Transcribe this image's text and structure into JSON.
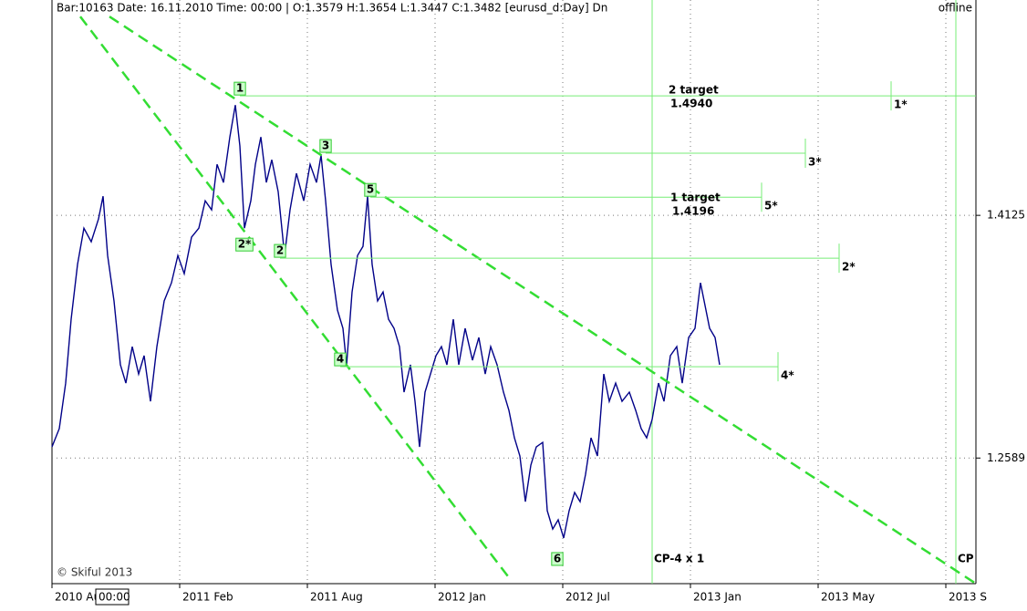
{
  "chart_data": {
    "type": "line",
    "header": "Bar:10163  Date:  16.11.2010  Time:  00:00  |  O:1.3579  H:1.3654  L:1.3447  C:1.3482   [eurusd_d:Day]  Dn",
    "status": "offline",
    "copyright": "© Skiful 2013",
    "time_box": "00:00",
    "color": "#000088",
    "grid": true,
    "xlim": [
      0,
      1013
    ],
    "ylim": [
      1.1794,
      1.5488
    ],
    "xticks": [
      {
        "value": 0,
        "label": "2010 Aug"
      },
      {
        "value": 140,
        "label": "2011 Feb"
      },
      {
        "value": 280,
        "label": "2011 Aug"
      },
      {
        "value": 420,
        "label": "2012 Jan"
      },
      {
        "value": 560,
        "label": "2012 Jul"
      },
      {
        "value": 700,
        "label": "2013 Jan"
      },
      {
        "value": 840,
        "label": "2013 May"
      },
      {
        "value": 980,
        "label": "2013 S"
      }
    ],
    "yticks": [
      1.4125,
      1.2589
    ],
    "x": [
      0,
      8,
      15,
      21,
      28,
      35,
      43,
      51,
      56,
      61,
      68,
      75,
      81,
      88,
      95,
      101,
      108,
      115,
      123,
      131,
      138,
      145,
      153,
      161,
      168,
      175,
      181,
      188,
      195,
      201,
      206,
      211,
      218,
      223,
      229,
      235,
      241,
      248,
      255,
      261,
      268,
      276,
      283,
      290,
      295,
      300,
      306,
      313,
      319,
      323,
      329,
      335,
      341,
      346,
      351,
      357,
      363,
      369,
      375,
      381,
      386,
      393,
      398,
      403,
      409,
      415,
      421,
      427,
      433,
      440,
      446,
      453,
      461,
      468,
      475,
      481,
      488,
      495,
      501,
      507,
      513,
      519,
      525,
      531,
      538,
      543,
      549,
      555,
      561,
      567,
      573,
      579,
      585,
      591,
      598,
      605,
      611,
      618,
      625,
      633,
      640,
      646,
      652,
      658,
      665,
      671,
      678,
      685,
      691,
      698,
      705,
      711,
      715,
      721,
      727,
      732
    ],
    "values": [
      1.266,
      1.2775,
      1.3063,
      1.3467,
      1.3814,
      1.4044,
      1.3958,
      1.4102,
      1.4246,
      1.3871,
      1.3583,
      1.3179,
      1.3063,
      1.3294,
      1.3121,
      1.3237,
      1.2948,
      1.3294,
      1.3583,
      1.3698,
      1.3871,
      1.3756,
      1.3987,
      1.4044,
      1.4217,
      1.416,
      1.4448,
      1.4333,
      1.4621,
      1.4823,
      1.4564,
      1.4044,
      1.4217,
      1.4448,
      1.4621,
      1.4333,
      1.4477,
      1.4275,
      1.3871,
      1.416,
      1.4391,
      1.4217,
      1.4448,
      1.4333,
      1.4506,
      1.4217,
      1.3814,
      1.3525,
      1.341,
      1.3179,
      1.364,
      1.3871,
      1.3929,
      1.4246,
      1.3814,
      1.3583,
      1.364,
      1.3467,
      1.341,
      1.3294,
      1.3006,
      1.3179,
      1.2948,
      1.266,
      1.3006,
      1.3121,
      1.3237,
      1.3294,
      1.3179,
      1.3467,
      1.3179,
      1.341,
      1.3208,
      1.3352,
      1.3121,
      1.3294,
      1.3179,
      1.3006,
      1.289,
      1.2717,
      1.2602,
      1.2313,
      1.2544,
      1.266,
      1.2688,
      1.2256,
      1.214,
      1.2198,
      1.2083,
      1.2256,
      1.2371,
      1.2313,
      1.2486,
      1.2717,
      1.2602,
      1.3121,
      1.2948,
      1.3063,
      1.2948,
      1.3006,
      1.289,
      1.2775,
      1.2717,
      1.2833,
      1.3063,
      1.2948,
      1.3237,
      1.3294,
      1.3063,
      1.3352,
      1.341,
      1.3698,
      1.3583,
      1.341,
      1.3352,
      1.3179
    ],
    "trendlines": [
      {
        "color": "#33dd33",
        "x": [
          31,
          503
        ],
        "values": [
          1.5383,
          1.1817
        ]
      },
      {
        "color": "#33dd33",
        "x": [
          63,
          1013
        ],
        "values": [
          1.5383,
          1.1794
        ]
      }
    ],
    "levels": [
      {
        "label": "1",
        "end_label": "1*",
        "price": 1.4881,
        "x": [
          206,
          1013
        ],
        "mark_x": 920
      },
      {
        "label": "3",
        "end_label": "3*",
        "price": 1.4518,
        "x": [
          300,
          826
        ],
        "mark_x": 826
      },
      {
        "label": "5",
        "end_label": "5*",
        "price": 1.424,
        "x": [
          349,
          778
        ],
        "mark_x": 778
      },
      {
        "label": "2",
        "end_label": "2*",
        "price": 1.3854,
        "x": [
          250,
          863
        ],
        "mark_x": 863
      },
      {
        "label": "4",
        "end_label": "4*",
        "price": 1.3167,
        "x": [
          316,
          796
        ],
        "mark_x": 796
      }
    ],
    "level_color": "#77ee77",
    "wave_labels": [
      {
        "label": "2*",
        "x": 211,
        "price": 1.394
      },
      {
        "label": "6",
        "x": 554,
        "price": 1.195
      }
    ],
    "targets": [
      {
        "title": "2 target",
        "price_label": "1.4940"
      },
      {
        "title": "1 target",
        "price_label": "1.4196"
      }
    ],
    "vlines": [
      {
        "label": "CP-4 x 1",
        "x": 658
      },
      {
        "label": "CP",
        "x": 991
      }
    ]
  }
}
